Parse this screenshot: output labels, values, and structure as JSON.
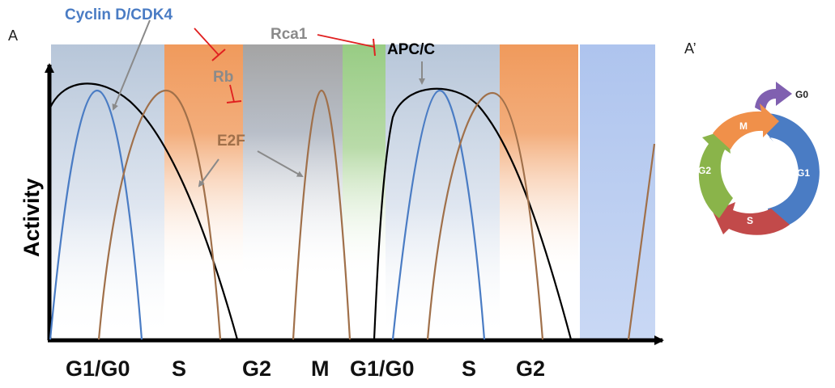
{
  "panels": {
    "left_label": "A",
    "right_label": "A’"
  },
  "axes": {
    "ylabel": "Activity"
  },
  "phases": [
    "G1/G0",
    "S",
    "G2",
    "M",
    "G1/G0",
    "S",
    "G2"
  ],
  "annotations": {
    "cyclin": "Cyclin D/CDK4",
    "rb": "Rb",
    "e2f": "E2F",
    "rca1": "Rca1",
    "apc": "APC/C"
  },
  "cycle_wheel": {
    "m": "M",
    "g1": "G1",
    "s": "S",
    "g2": "G2",
    "g0": "G0"
  },
  "colors": {
    "cyclin": "#4a7cc4",
    "e2f": "#a0704a",
    "apc": "#000000",
    "inhibition": "#e02020",
    "arrow": "#8a8a8a",
    "band_g1": "#b7c6d9",
    "band_s": "#f09a5c",
    "band_g2": "#a4a4a4",
    "band_m": "#98cc84",
    "band_blue": "#aec4ee",
    "wheel_m": "#f0904a",
    "wheel_g1": "#4a7cc4",
    "wheel_s": "#c24a4a",
    "wheel_g2": "#8ab44a",
    "wheel_g0": "#8060b0"
  }
}
